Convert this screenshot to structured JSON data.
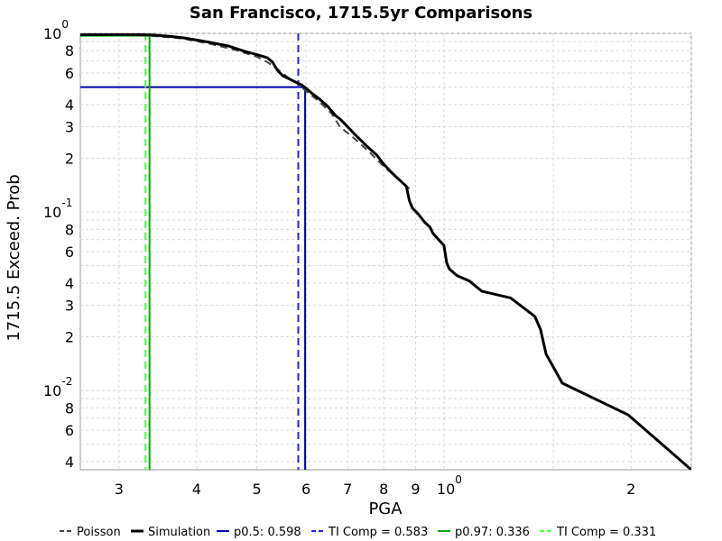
{
  "chart_data": {
    "type": "line",
    "title": "San Francisco, 1715.5yr Comparisons",
    "xlabel": "PGA",
    "ylabel": "1715.5 Exceed. Prob",
    "x_scale": "log",
    "y_scale": "log",
    "xlim": [
      0.26,
      2.5
    ],
    "ylim": [
      0.0036,
      1.0
    ],
    "grid": true,
    "legend_position": "bottom",
    "x_ticks": [
      {
        "value": 0.3,
        "label": "3",
        "sup": ""
      },
      {
        "value": 0.4,
        "label": "4",
        "sup": ""
      },
      {
        "value": 0.5,
        "label": "5",
        "sup": ""
      },
      {
        "value": 0.6,
        "label": "6",
        "sup": ""
      },
      {
        "value": 0.7,
        "label": "7",
        "sup": ""
      },
      {
        "value": 0.8,
        "label": "8",
        "sup": ""
      },
      {
        "value": 0.9,
        "label": "9",
        "sup": ""
      },
      {
        "value": 1.0,
        "label": "10",
        "sup": "0"
      },
      {
        "value": 2.0,
        "label": "2",
        "sup": ""
      }
    ],
    "y_ticks": [
      {
        "value": 1.0,
        "label": "10",
        "sup": "0"
      },
      {
        "value": 0.8,
        "label": "8",
        "sup": ""
      },
      {
        "value": 0.6,
        "label": "6",
        "sup": ""
      },
      {
        "value": 0.4,
        "label": "4",
        "sup": ""
      },
      {
        "value": 0.3,
        "label": "3",
        "sup": ""
      },
      {
        "value": 0.2,
        "label": "2",
        "sup": ""
      },
      {
        "value": 0.1,
        "label": "10",
        "sup": "-1"
      },
      {
        "value": 0.08,
        "label": "8",
        "sup": ""
      },
      {
        "value": 0.06,
        "label": "6",
        "sup": ""
      },
      {
        "value": 0.04,
        "label": "4",
        "sup": ""
      },
      {
        "value": 0.03,
        "label": "3",
        "sup": ""
      },
      {
        "value": 0.02,
        "label": "2",
        "sup": ""
      },
      {
        "value": 0.01,
        "label": "10",
        "sup": "-2"
      },
      {
        "value": 0.008,
        "label": "8",
        "sup": ""
      },
      {
        "value": 0.006,
        "label": "6",
        "sup": ""
      },
      {
        "value": 0.004,
        "label": "4",
        "sup": ""
      }
    ],
    "series": [
      {
        "name": "Simulation",
        "color": "#000000",
        "dash": "solid",
        "points": [
          [
            0.26,
            0.982
          ],
          [
            0.29,
            0.985
          ],
          [
            0.32,
            0.985
          ],
          [
            0.34,
            0.978
          ],
          [
            0.36,
            0.965
          ],
          [
            0.38,
            0.945
          ],
          [
            0.4,
            0.918
          ],
          [
            0.42,
            0.89
          ],
          [
            0.45,
            0.85
          ],
          [
            0.48,
            0.79
          ],
          [
            0.5,
            0.76
          ],
          [
            0.52,
            0.73
          ],
          [
            0.53,
            0.69
          ],
          [
            0.54,
            0.62
          ],
          [
            0.55,
            0.58
          ],
          [
            0.57,
            0.545
          ],
          [
            0.59,
            0.515
          ],
          [
            0.6,
            0.493
          ],
          [
            0.61,
            0.468
          ],
          [
            0.63,
            0.43
          ],
          [
            0.65,
            0.39
          ],
          [
            0.67,
            0.345
          ],
          [
            0.68,
            0.332
          ],
          [
            0.7,
            0.3
          ],
          [
            0.72,
            0.27
          ],
          [
            0.75,
            0.235
          ],
          [
            0.78,
            0.208
          ],
          [
            0.8,
            0.185
          ],
          [
            0.83,
            0.162
          ],
          [
            0.85,
            0.15
          ],
          [
            0.87,
            0.139
          ],
          [
            0.88,
            0.115
          ],
          [
            0.89,
            0.105
          ],
          [
            0.91,
            0.097
          ],
          [
            0.93,
            0.088
          ],
          [
            0.95,
            0.082
          ],
          [
            0.96,
            0.076
          ],
          [
            0.98,
            0.07
          ],
          [
            1.0,
            0.065
          ],
          [
            1.01,
            0.052
          ],
          [
            1.02,
            0.048
          ],
          [
            1.05,
            0.044
          ],
          [
            1.1,
            0.041
          ],
          [
            1.15,
            0.036
          ],
          [
            1.28,
            0.033
          ],
          [
            1.4,
            0.026
          ],
          [
            1.43,
            0.022
          ],
          [
            1.46,
            0.016
          ],
          [
            1.55,
            0.011
          ],
          [
            1.98,
            0.0073
          ],
          [
            2.5,
            0.0036
          ]
        ]
      },
      {
        "name": "Poisson",
        "color": "#444444",
        "dash": "dashed",
        "points": [
          [
            0.26,
            0.984
          ],
          [
            0.3,
            0.982
          ],
          [
            0.34,
            0.968
          ],
          [
            0.38,
            0.935
          ],
          [
            0.42,
            0.875
          ],
          [
            0.46,
            0.81
          ],
          [
            0.5,
            0.74
          ],
          [
            0.52,
            0.69
          ],
          [
            0.54,
            0.63
          ],
          [
            0.56,
            0.57
          ],
          [
            0.58,
            0.525
          ],
          [
            0.6,
            0.475
          ],
          [
            0.63,
            0.415
          ],
          [
            0.66,
            0.355
          ],
          [
            0.68,
            0.3
          ],
          [
            0.72,
            0.255
          ],
          [
            0.76,
            0.215
          ],
          [
            0.8,
            0.18
          ],
          [
            0.84,
            0.155
          ],
          [
            0.88,
            0.135
          ]
        ]
      },
      {
        "name": "p0.5: 0.598",
        "color": "#0000aa",
        "dash": "solid",
        "points": [
          [
            0.26,
            0.5
          ],
          [
            0.598,
            0.5
          ],
          [
            0.598,
            0.0036
          ]
        ]
      },
      {
        "name": "TI Comp = 0.583",
        "color": "#2222ee",
        "dash": "dashed",
        "points": [
          [
            0.583,
            1.0
          ],
          [
            0.583,
            0.0036
          ]
        ]
      },
      {
        "name": "p0.97: 0.336",
        "color": "#00aa00",
        "dash": "solid",
        "points": [
          [
            0.26,
            0.97
          ],
          [
            0.336,
            0.97
          ],
          [
            0.336,
            0.0036
          ]
        ]
      },
      {
        "name": "TI Comp = 0.331",
        "color": "#44ff44",
        "dash": "dashed",
        "points": [
          [
            0.331,
            1.0
          ],
          [
            0.331,
            0.0036
          ]
        ]
      }
    ]
  }
}
